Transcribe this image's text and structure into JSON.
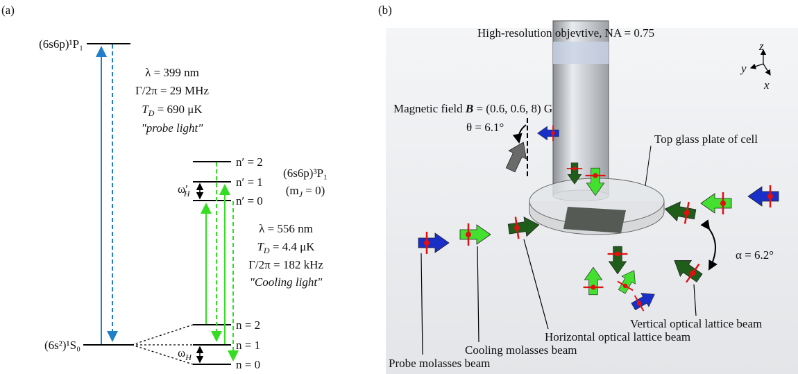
{
  "panel_a": {
    "label": "(a)",
    "upper_level": "(6s6p)¹P₁",
    "ground_level": "(6s²)¹S₀",
    "triplet_level": "(6s6p)³P₁",
    "triplet_mj": {
      "open": "(m",
      "sub": "J",
      "rest": " = 0)"
    },
    "probe_info": {
      "wavelength": "λ = 399 nm",
      "linewidth": "Γ/2π = 29 MHz",
      "temp_symbol": "T",
      "temp_sub": "D",
      "temp_value": " = 690 μK",
      "name": "\"probe light\""
    },
    "cooling_info": {
      "wavelength": "λ = 556 nm",
      "temp_symbol": "T",
      "temp_sub": "D",
      "temp_value": " = 4.4 μK",
      "linewidth": "Γ/2π = 182 kHz",
      "name": "\"Cooling light\""
    },
    "excited_sublevels": [
      "n′ = 2",
      "n′ = 1",
      "n′ = 0"
    ],
    "ground_sublevels": [
      "n = 2",
      "n = 1",
      "n = 0"
    ],
    "omega_excited": {
      "symbol": "ω′",
      "sub": "H"
    },
    "omega_ground": {
      "symbol": "ω",
      "sub": "H"
    }
  },
  "panel_b": {
    "label": "(b)",
    "objective": "High-resolution objevtive, NA = 0.75",
    "axes": {
      "z": "z",
      "y": "y",
      "x": "x"
    },
    "magnetic_field": {
      "prefix": "Magnetic field ",
      "symbol": "B",
      "value": " = (0.6, 0.6, 8) G"
    },
    "theta": "θ = 6.1°",
    "glass_plate": "Top glass plate of cell",
    "alpha": "α = 6.2°",
    "beams": [
      "Vertical optical lattice beam",
      "Horizontal optical lattice beam",
      "Cooling molasses beam",
      "Probe molasses beam"
    ]
  }
}
